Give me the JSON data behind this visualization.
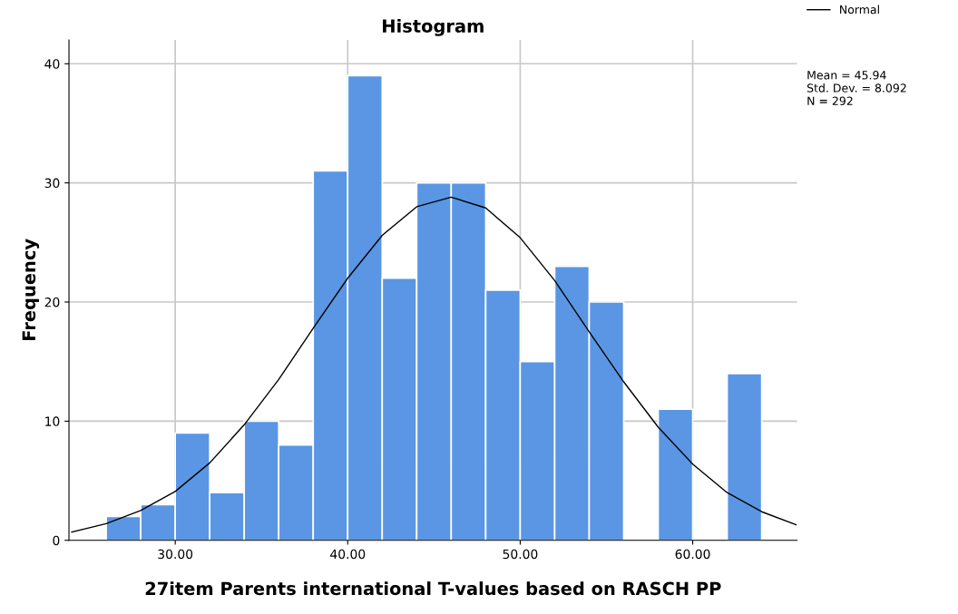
{
  "chart_data": {
    "type": "histogram",
    "title": "Histogram",
    "xlabel": "27item Parents international T-values based on RASCH PP",
    "ylabel": "Frequency",
    "bins": [
      26,
      28,
      30,
      32,
      34,
      36,
      38,
      40,
      42,
      44,
      46,
      48,
      50,
      52,
      54,
      56,
      58,
      60,
      62,
      64
    ],
    "values": [
      2,
      3,
      9,
      4,
      10,
      8,
      31,
      39,
      22,
      30,
      30,
      21,
      15,
      23,
      20,
      0,
      11,
      0,
      14
    ],
    "color": "#5a96e3",
    "series": [
      {
        "type": "line",
        "name": "Normal",
        "color": "#000000",
        "x": [
          24,
          26,
          28,
          30,
          32,
          34,
          36,
          38,
          40,
          42,
          44,
          46,
          48,
          50,
          52,
          54,
          56,
          58,
          60,
          62,
          64,
          66
        ],
        "values": [
          0.7,
          1.4,
          2.5,
          4.1,
          6.5,
          9.7,
          13.5,
          17.8,
          22.0,
          25.6,
          28.0,
          28.8,
          27.9,
          25.4,
          21.8,
          17.5,
          13.3,
          9.5,
          6.4,
          4.0,
          2.4,
          1.3
        ]
      }
    ],
    "xlim": [
      23.84,
      66.05
    ],
    "ylim": [
      0,
      42
    ],
    "xticks": [
      {
        "value": 30,
        "label": "30.00"
      },
      {
        "value": 40,
        "label": "40.00"
      },
      {
        "value": 50,
        "label": "50.00"
      },
      {
        "value": 60,
        "label": "60.00"
      }
    ],
    "yticks": [
      0,
      10,
      20,
      30,
      40
    ],
    "annotations": [
      "Mean = 45.94",
      "Std. Dev. = 8.092",
      "N = 292"
    ],
    "grid": true,
    "legend": "top right",
    "line_style": "solid",
    "marker": "none"
  }
}
